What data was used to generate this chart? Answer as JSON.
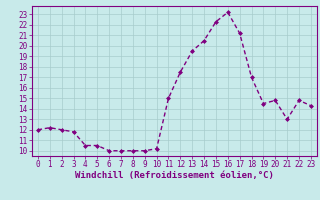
{
  "x": [
    0,
    1,
    2,
    3,
    4,
    5,
    6,
    7,
    8,
    9,
    10,
    11,
    12,
    13,
    14,
    15,
    16,
    17,
    18,
    19,
    20,
    21,
    22,
    23
  ],
  "y": [
    12,
    12.2,
    12,
    11.8,
    10.5,
    10.5,
    10,
    10,
    10,
    10,
    10.2,
    15,
    17.5,
    19.5,
    20.5,
    22.3,
    23.2,
    21.2,
    17,
    14.5,
    14.8,
    13,
    14.8,
    14.3
  ],
  "line_color": "#800080",
  "marker": "D",
  "marker_size": 2.0,
  "line_width": 1.0,
  "bg_color": "#c8eaea",
  "grid_color": "#a8cccc",
  "xlabel": "Windchill (Refroidissement éolien,°C)",
  "xlabel_fontsize": 6.5,
  "ytick_min": 10,
  "ytick_max": 23,
  "xtick_min": 0,
  "xtick_max": 23,
  "ylim": [
    9.5,
    23.8
  ],
  "xlim": [
    -0.5,
    23.5
  ],
  "tick_label_fontsize": 5.5,
  "tick_color": "#800080",
  "axis_color": "#800080"
}
